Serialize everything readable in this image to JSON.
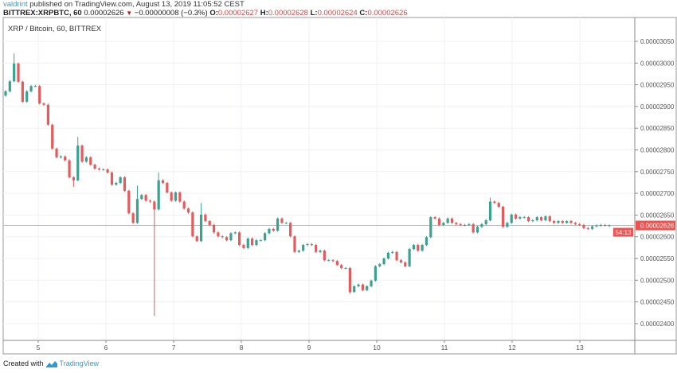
{
  "header": {
    "user": "valdrint",
    "published_text": "published on TradingView.com, August 13, 2019 11:05:52 CEST",
    "symbol": "BITTREX:XRPBTC, 60",
    "last": "0.00002626",
    "change": "−0.00000008 (−0.3%)",
    "change_icon": "triangle-down-icon",
    "o_label": "O:",
    "o": "0.00002627",
    "h_label": "H:",
    "h": "0.00002628",
    "l_label": "L:",
    "l": "0.00002624",
    "c_label": "C:",
    "c": "0.00002626"
  },
  "legend": "XRP / Bitcoin, 60, BITTREX",
  "price_label": "0.00002626",
  "countdown": "54:13",
  "footer": {
    "created_with": "Created with",
    "brand": "TradingView"
  },
  "colors": {
    "up": "#3ba190",
    "down": "#e55a5a",
    "last_line": "#f0a8a8",
    "label_bg": "#ef5350",
    "grid": "#eef0f3"
  },
  "chart_data": {
    "type": "candlestick",
    "title": "XRP / Bitcoin, 60, BITTREX",
    "interval": "60",
    "grid": true,
    "ylim": [
      2.375e-05,
      3.095e-05
    ],
    "y_ticks": [
      "0.00003050",
      "0.00003000",
      "0.00002950",
      "0.00002900",
      "0.00002850",
      "0.00002800",
      "0.00002750",
      "0.00002700",
      "0.00002650",
      "0.00002600",
      "0.00002550",
      "0.00002500",
      "0.00002450",
      "0.00002400"
    ],
    "x_ticks": [
      "5",
      "6",
      "7",
      "8",
      "9",
      "10",
      "11",
      "12",
      "13"
    ],
    "x_range_days": [
      4.5,
      13.45
    ],
    "open_first": 2.925e-05,
    "closes": [
      2.935e-05,
      2.958e-05,
      2.999e-05,
      2.957e-05,
      2.911e-05,
      2.935e-05,
      2.947e-05,
      2.947e-05,
      2.907e-05,
      2.904e-05,
      2.858e-05,
      2.803e-05,
      2.783e-05,
      2.785e-05,
      2.776e-05,
      2.737e-05,
      2.73e-05,
      2.81e-05,
      2.773e-05,
      2.783e-05,
      2.766e-05,
      2.757e-05,
      2.755e-05,
      2.755e-05,
      2.748e-05,
      2.72e-05,
      2.724e-05,
      2.737e-05,
      2.706e-05,
      2.654e-05,
      2.632e-05,
      2.687e-05,
      2.696e-05,
      2.683e-05,
      2.681e-05,
      2.663e-05,
      2.73e-05,
      2.724e-05,
      2.702e-05,
      2.683e-05,
      2.702e-05,
      2.681e-05,
      2.665e-05,
      2.656e-05,
      2.601e-05,
      2.59e-05,
      2.651e-05,
      2.636e-05,
      2.627e-05,
      2.61e-05,
      2.601e-05,
      2.599e-05,
      2.592e-05,
      2.608e-05,
      2.61e-05,
      2.581e-05,
      2.574e-05,
      2.596e-05,
      2.581e-05,
      2.592e-05,
      2.592e-05,
      2.608e-05,
      2.618e-05,
      2.614e-05,
      2.642e-05,
      2.632e-05,
      2.632e-05,
      2.601e-05,
      2.565e-05,
      2.568e-05,
      2.581e-05,
      2.583e-05,
      2.581e-05,
      2.565e-05,
      2.568e-05,
      2.546e-05,
      2.546e-05,
      2.544e-05,
      2.535e-05,
      2.528e-05,
      2.528e-05,
      2.473e-05,
      2.486e-05,
      2.49e-05,
      2.477e-05,
      2.486e-05,
      2.499e-05,
      2.532e-05,
      2.537e-05,
      2.55e-05,
      2.563e-05,
      2.565e-05,
      2.546e-05,
      2.541e-05,
      2.532e-05,
      2.572e-05,
      2.581e-05,
      2.568e-05,
      2.581e-05,
      2.599e-05,
      2.645e-05,
      2.642e-05,
      2.627e-05,
      2.632e-05,
      2.642e-05,
      2.632e-05,
      2.629e-05,
      2.627e-05,
      2.627e-05,
      2.629e-05,
      2.61e-05,
      2.623e-05,
      2.629e-05,
      2.638e-05,
      2.681e-05,
      2.678e-05,
      2.669e-05,
      2.623e-05,
      2.632e-05,
      2.651e-05,
      2.642e-05,
      2.645e-05,
      2.645e-05,
      2.636e-05,
      2.638e-05,
      2.645e-05,
      2.638e-05,
      2.647e-05,
      2.636e-05,
      2.632e-05,
      2.636e-05,
      2.632e-05,
      2.636e-05,
      2.632e-05,
      2.629e-05,
      2.627e-05,
      2.62e-05,
      2.618e-05,
      2.624e-05,
      2.626e-05,
      2.627e-05,
      2.626e-05,
      2.626e-05
    ],
    "notable_wicks": [
      {
        "candle": 2,
        "high": 3.022e-05
      },
      {
        "candle": 17,
        "high": 2.83e-05
      },
      {
        "candle": 16,
        "low": 2.715e-05
      },
      {
        "candle": 31,
        "high": 2.718e-05
      },
      {
        "candle": 35,
        "low": 2.418e-05
      },
      {
        "candle": 36,
        "high": 2.748e-05
      },
      {
        "candle": 46,
        "high": 2.678e-05
      },
      {
        "candle": 81,
        "low": 2.468e-05
      },
      {
        "candle": 114,
        "high": 2.69e-05
      }
    ],
    "last_price": 2.626e-05
  }
}
